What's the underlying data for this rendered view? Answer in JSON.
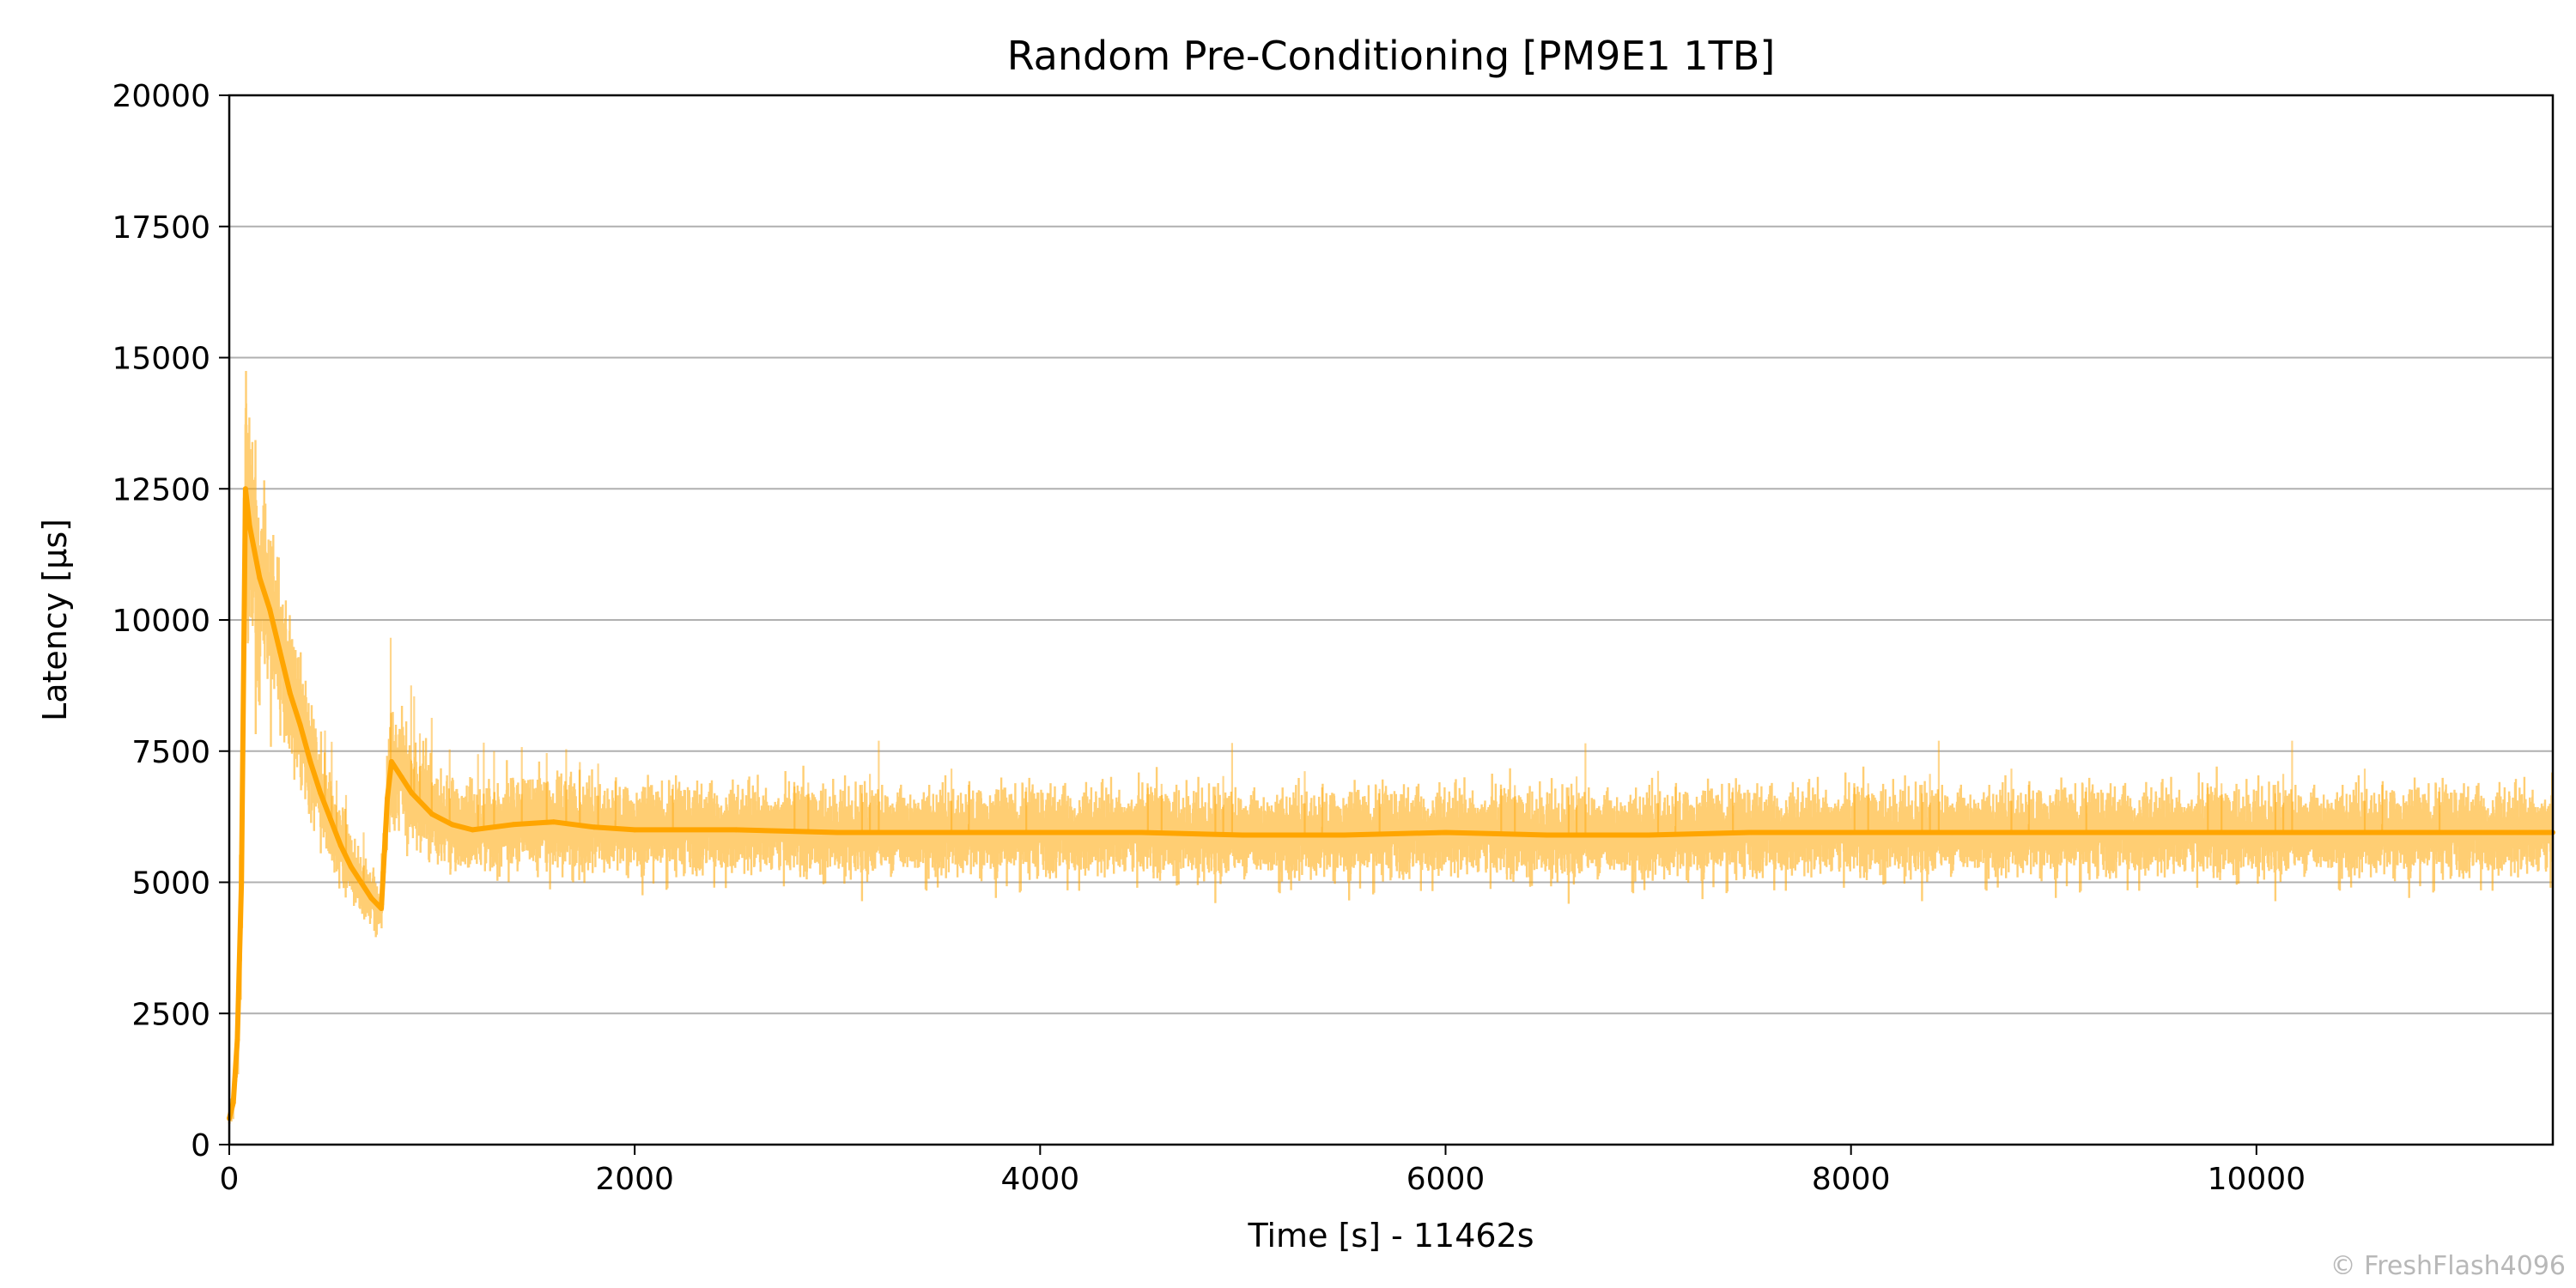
{
  "chart_data": {
    "type": "line",
    "title": "Random Pre-Conditioning [PM9E1 1TB]",
    "xlabel": "Time [s] - 11462s",
    "ylabel": "Latency [µs]",
    "xlim": [
      0,
      11462
    ],
    "ylim": [
      0,
      20000
    ],
    "xticks": [
      0,
      2000,
      4000,
      6000,
      8000,
      10000
    ],
    "yticks": [
      0,
      2500,
      5000,
      7500,
      10000,
      12500,
      15000,
      17500,
      20000
    ],
    "grid": "horizontal",
    "series": [
      {
        "color": "#FFA500",
        "x": [
          0,
          20,
          40,
          60,
          80,
          100,
          150,
          200,
          250,
          300,
          350,
          400,
          450,
          500,
          550,
          600,
          650,
          700,
          750,
          760,
          780,
          800,
          850,
          900,
          1000,
          1100,
          1200,
          1400,
          1600,
          1800,
          2000,
          2500,
          3000,
          3500,
          4000,
          4500,
          5000,
          5500,
          6000,
          6500,
          7000,
          7500,
          8000,
          8500,
          9000,
          9500,
          10000,
          10500,
          11000,
          11462
        ],
        "values": [
          500,
          800,
          2000,
          5000,
          12500,
          11800,
          10800,
          10200,
          9400,
          8600,
          8000,
          7300,
          6700,
          6200,
          5700,
          5300,
          5000,
          4700,
          4500,
          5200,
          6600,
          7300,
          7000,
          6700,
          6300,
          6100,
          6000,
          6100,
          6150,
          6050,
          6000,
          6000,
          5950,
          5950,
          5950,
          5950,
          5900,
          5900,
          5950,
          5900,
          5900,
          5950,
          5950,
          5950,
          5950,
          5950,
          5950,
          5950,
          5950,
          5950
        ],
        "spread": [
          100,
          150,
          400,
          1200,
          1400,
          1200,
          1000,
          900,
          800,
          700,
          600,
          550,
          500,
          450,
          400,
          350,
          300,
          300,
          300,
          400,
          600,
          600,
          550,
          500,
          450,
          420,
          420,
          450,
          480,
          420,
          420,
          420,
          420,
          420,
          420,
          420,
          420,
          420,
          420,
          420,
          420,
          420,
          420,
          420,
          420,
          420,
          420,
          420,
          420,
          420
        ]
      }
    ]
  },
  "watermark": "© FreshFlash4096"
}
